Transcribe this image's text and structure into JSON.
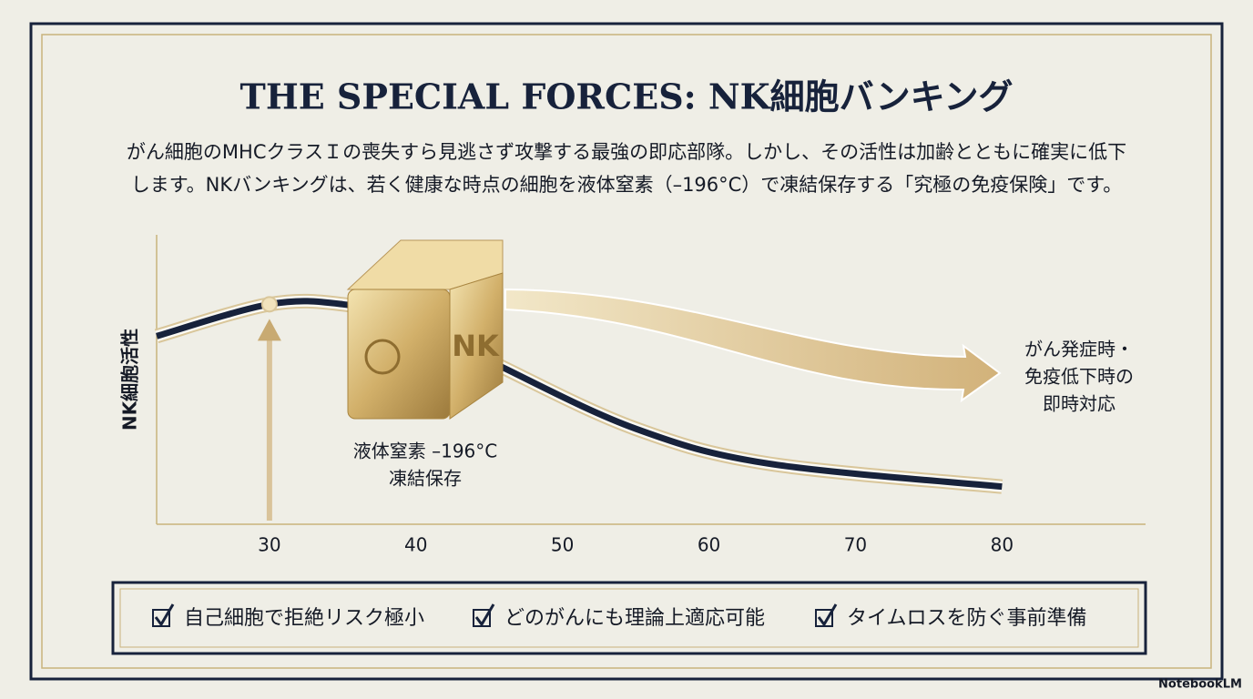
{
  "title": "THE SPECIAL FORCES: NK細胞バンキング",
  "description": [
    "がん細胞のMHCクラスＩの喪失すら見逃さず攻撃する最強の即応部隊。しかし、その活性は加齢とともに確実に低下",
    "します。NKバンキングは、若く健康な時点の細胞を液体窒素（–196°C）で凍結保存する「究極の免疫保険」です。"
  ],
  "chart_data": {
    "type": "line",
    "y_label": "NK細胞活性",
    "x": [
      22.3,
      30,
      35,
      40,
      46,
      55,
      64,
      80
    ],
    "values": [
      65,
      76,
      76,
      70,
      54,
      33,
      21,
      13
    ],
    "color": "#17223b",
    "xlim": [
      22.3,
      89.8
    ],
    "ylim": [
      0,
      100
    ],
    "xticks": [
      30,
      40,
      50,
      60,
      70,
      80
    ],
    "annotations": [
      [
        "液体窒素 –196°C",
        "凍結保存"
      ],
      [
        "がん発症時・",
        "免疫低下時の",
        "即時対応"
      ]
    ]
  },
  "checklist": [
    "自己細胞で拒絶リスク極小",
    "どのがんにも理論上適応可能",
    "タイムロスを防ぐ事前準備"
  ],
  "footer": "NotebookLM"
}
